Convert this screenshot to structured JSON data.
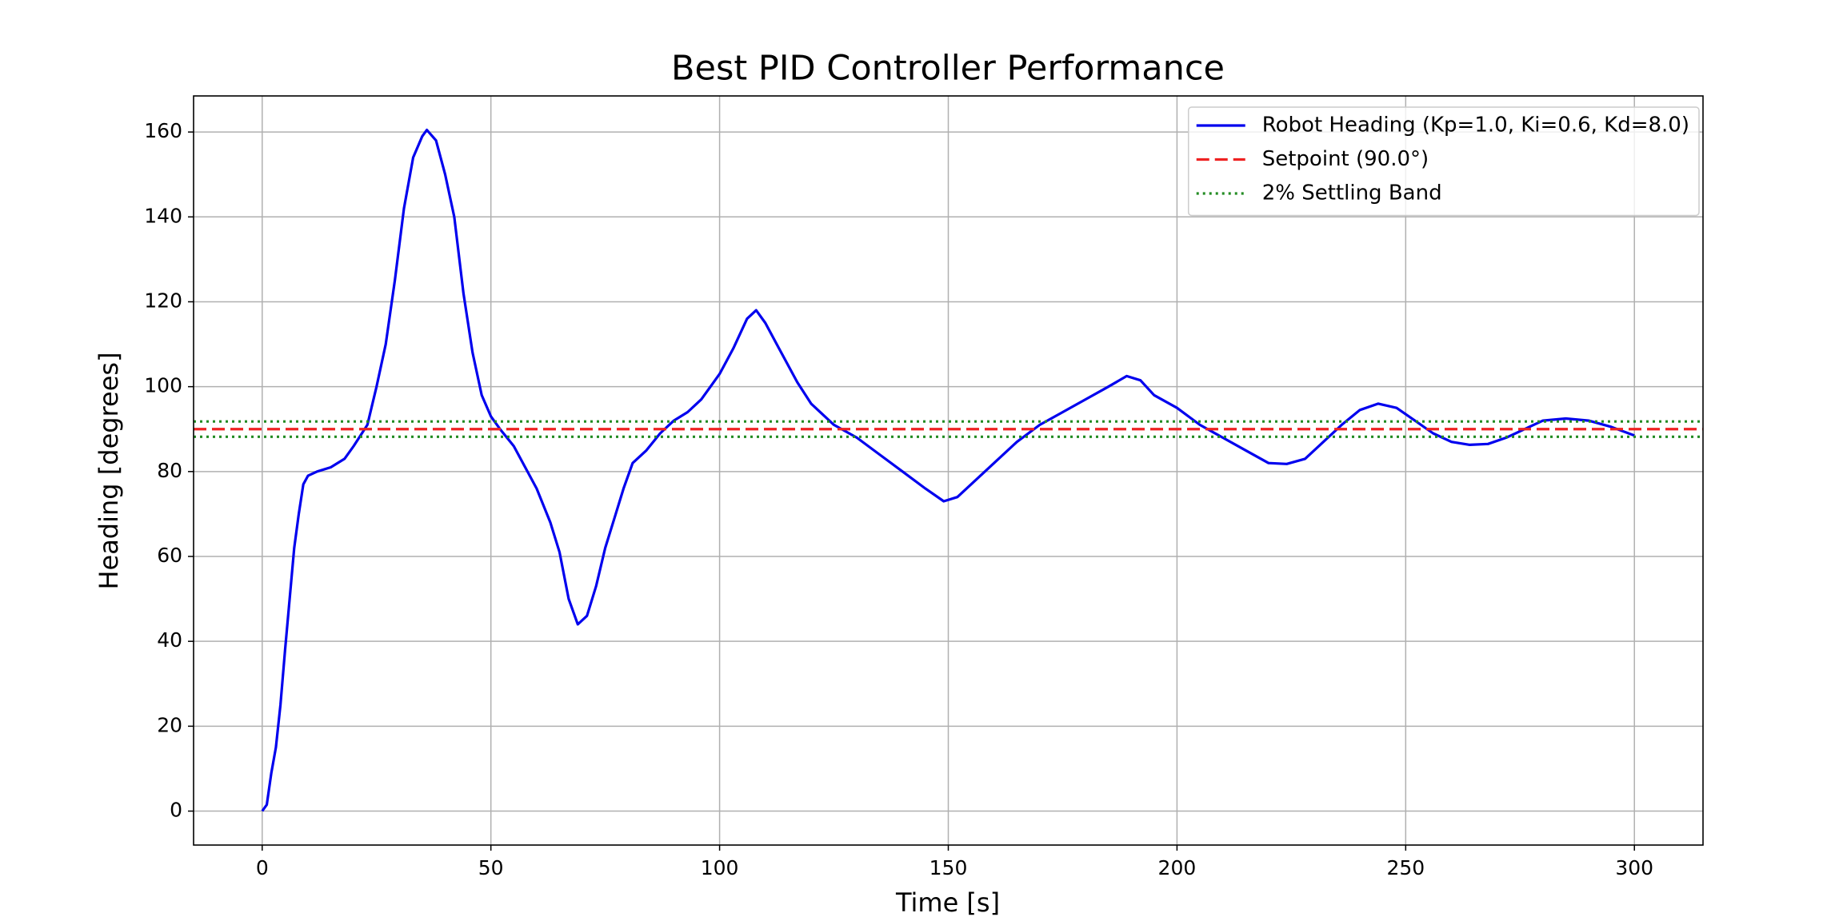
{
  "chart_data": {
    "type": "line",
    "title": "Best PID Controller Performance",
    "x_label": "Time [s]",
    "y_label": "Heading [degrees]",
    "x": [
      0,
      1,
      2,
      3,
      4,
      5,
      6,
      7,
      8,
      9,
      10,
      12,
      15,
      18,
      20,
      23,
      25,
      27,
      29,
      31,
      33,
      35,
      36,
      38,
      40,
      42,
      44,
      46,
      48,
      50,
      52,
      55,
      58,
      60,
      63,
      65,
      67,
      69,
      71,
      73,
      75,
      77,
      79,
      81,
      84,
      87,
      90,
      93,
      96,
      100,
      103,
      106,
      108,
      110,
      113,
      117,
      120,
      125,
      130,
      135,
      140,
      145,
      149,
      152,
      156,
      160,
      165,
      170,
      175,
      180,
      185,
      189,
      192,
      195,
      200,
      205,
      210,
      215,
      220,
      224,
      228,
      232,
      236,
      240,
      244,
      248,
      252,
      256,
      260,
      264,
      268,
      272,
      276,
      280,
      285,
      290,
      295,
      300
    ],
    "series": [
      {
        "name": "Robot Heading (Kp=1.0, Ki=0.6, Kd=8.0)",
        "color": "#0000ee",
        "values": [
          0,
          1.5,
          9,
          15,
          25,
          38,
          50,
          62,
          70,
          77,
          79,
          80,
          81,
          83,
          86,
          91,
          100,
          110,
          125,
          142,
          154,
          159,
          160.5,
          158,
          150,
          140,
          122,
          108,
          98,
          93,
          90,
          86,
          80,
          76,
          68,
          61,
          50,
          44,
          46,
          53,
          62,
          69,
          76,
          82,
          85,
          89,
          92,
          94,
          97,
          103,
          109,
          116,
          118,
          115,
          109,
          101,
          96,
          91,
          88,
          84,
          80,
          76,
          73,
          74,
          78,
          82,
          87,
          91,
          94,
          97,
          100,
          102.5,
          101.5,
          98,
          95,
          91,
          88,
          85,
          82,
          81.8,
          83,
          87,
          91,
          94.5,
          96,
          95,
          92,
          89,
          87,
          86.3,
          86.5,
          88,
          90,
          92,
          92.5,
          92,
          90.5,
          88.5
        ]
      }
    ],
    "reference_lines": [
      {
        "name": "Setpoint (90.0°)",
        "color": "#ee2222",
        "style": "dashed",
        "values": [
          90.0
        ]
      },
      {
        "name": "2% Settling Band",
        "color": "#228b22",
        "style": "dotted",
        "values": [
          88.2,
          91.8
        ]
      }
    ],
    "xlim": [
      -15,
      315
    ],
    "xticks": [
      0,
      50,
      100,
      150,
      200,
      250,
      300
    ],
    "ylim": [
      -8,
      168.5
    ],
    "yticks": [
      0,
      20,
      40,
      60,
      80,
      100,
      120,
      140,
      160
    ],
    "grid": true,
    "legend": "upper right"
  }
}
